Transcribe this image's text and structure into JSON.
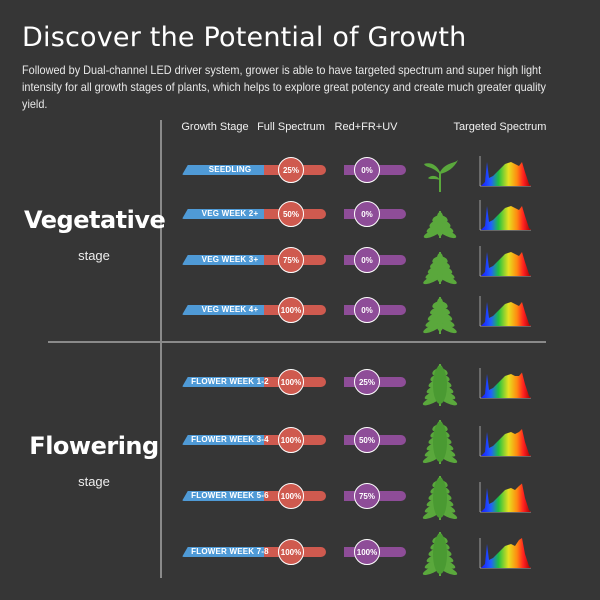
{
  "title": "Discover the Potential of Growth",
  "subtitle": "Followed by Dual-channel LED driver system, grower is able to have targeted spectrum and super high light intensity for all growth stages of plants, which helps to explore great potency and create much greater quality yield.",
  "columns": {
    "growth_stage": "Growth Stage",
    "full_spectrum": "Full Spectrum",
    "red_fr_uv": "Red+FR+UV",
    "targeted_spectrum": "Targeted Spectrum"
  },
  "vegetative": {
    "title": "Vegetative",
    "sub": "stage"
  },
  "flowering": {
    "title": "Flowering",
    "sub": "stage"
  },
  "rows": [
    {
      "stage": "SEEDLING",
      "full": "25%",
      "red": "0%",
      "full_value": 25,
      "red_value": 0,
      "plant_icon": "seedling-icon"
    },
    {
      "stage": "VEG WEEK 2+",
      "full": "50%",
      "red": "0%",
      "full_value": 50,
      "red_value": 0,
      "plant_icon": "young-plant-icon"
    },
    {
      "stage": "VEG WEEK 3+",
      "full": "75%",
      "red": "0%",
      "full_value": 75,
      "red_value": 0,
      "plant_icon": "plant-icon"
    },
    {
      "stage": "VEG WEEK 4+",
      "full": "100%",
      "red": "0%",
      "full_value": 100,
      "red_value": 0,
      "plant_icon": "mature-plant-icon"
    },
    {
      "stage": "FLOWER WEEK  1-2",
      "full": "100%",
      "red": "25%",
      "full_value": 100,
      "red_value": 25,
      "plant_icon": "flowering-plant-icon"
    },
    {
      "stage": "FLOWER WEEK 3-4",
      "full": "100%",
      "red": "50%",
      "full_value": 100,
      "red_value": 50,
      "plant_icon": "flowering-plant-icon"
    },
    {
      "stage": "FLOWER WEEK 5-6",
      "full": "100%",
      "red": "75%",
      "full_value": 100,
      "red_value": 75,
      "plant_icon": "flowering-plant-icon"
    },
    {
      "stage": "FLOWER WEEK 7-8",
      "full": "100%",
      "red": "100%",
      "full_value": 100,
      "red_value": 100,
      "plant_icon": "flowering-plant-icon"
    }
  ],
  "colors": {
    "background": "#363636",
    "stage_blue": "#4f9ad6",
    "full_spectrum_red": "#cf5a4f",
    "red_fr_uv_purple": "#8e4d98",
    "plant_green": "#5aa83c"
  }
}
